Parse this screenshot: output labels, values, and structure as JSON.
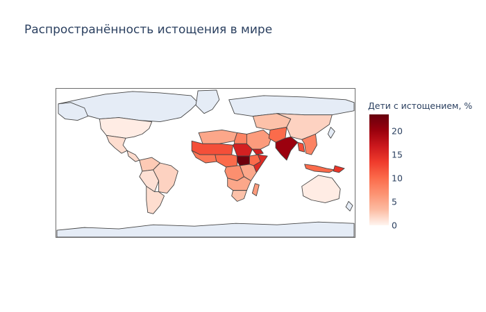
{
  "title": "Распространённость истощения в мире",
  "colorbar": {
    "title": "Дети с истощением, %",
    "ticks": [
      "0",
      "5",
      "10",
      "15",
      "20"
    ],
    "range": [
      0,
      23.5
    ],
    "colors": [
      "#fff5f0",
      "#fcbba1",
      "#fc9272",
      "#fb6a4a",
      "#ef3b2c",
      "#cb181d",
      "#99000d",
      "#67000d"
    ]
  },
  "chart_data": {
    "type": "choropleth",
    "projection": "equirectangular",
    "colorscale": "Reds",
    "value_label": "Дети с истощением, %",
    "missing_data_color": "#e5ecf6",
    "regions": [
      {
        "name": "USA",
        "value": 0.5
      },
      {
        "name": "Mexico",
        "value": 1.4
      },
      {
        "name": "Central America",
        "value": 1.5
      },
      {
        "name": "Colombia / Venezuela",
        "value": 2.5
      },
      {
        "name": "Peru / Bolivia",
        "value": 1.2
      },
      {
        "name": "Brazil",
        "value": 2.0
      },
      {
        "name": "Argentina / Chile",
        "value": 1.4
      },
      {
        "name": "Mauritania / Mali / Niger",
        "value": 12
      },
      {
        "name": "Algeria / Libya",
        "value": 5
      },
      {
        "name": "Egypt",
        "value": 8
      },
      {
        "name": "West Africa coast",
        "value": 9
      },
      {
        "name": "Nigeria / Chad",
        "value": 10
      },
      {
        "name": "Sudan",
        "value": 16
      },
      {
        "name": "South Sudan",
        "value": 23
      },
      {
        "name": "Ethiopia",
        "value": 10
      },
      {
        "name": "Somalia",
        "value": 15
      },
      {
        "name": "DR Congo / Central Africa",
        "value": 7
      },
      {
        "name": "Kenya / Tanzania",
        "value": 5
      },
      {
        "name": "Angola / Zambia",
        "value": 5
      },
      {
        "name": "Southern Africa",
        "value": 3
      },
      {
        "name": "Madagascar",
        "value": 6
      },
      {
        "name": "Middle East / Arabia",
        "value": 6
      },
      {
        "name": "Yemen",
        "value": 16
      },
      {
        "name": "Central Asia",
        "value": 3
      },
      {
        "name": "China / Mongolia",
        "value": 2
      },
      {
        "name": "Pakistan",
        "value": 10
      },
      {
        "name": "India",
        "value": 20
      },
      {
        "name": "Bangladesh / Myanmar",
        "value": 12
      },
      {
        "name": "Southeast Asia",
        "value": 8
      },
      {
        "name": "Indonesia / Philippines",
        "value": 10
      },
      {
        "name": "Papua New Guinea",
        "value": 14
      },
      {
        "name": "Australia",
        "value": 0.5
      }
    ]
  }
}
